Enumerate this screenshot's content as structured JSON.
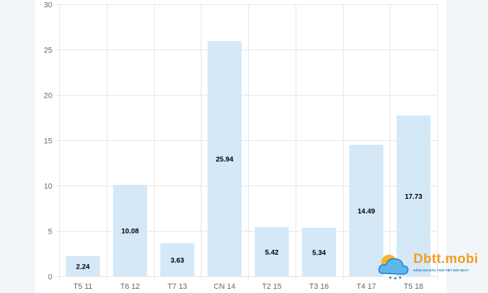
{
  "chart_data": {
    "type": "bar",
    "categories": [
      "T5 11",
      "T6 12",
      "T7 13",
      "CN 14",
      "T2 15",
      "T3 16",
      "T4 17",
      "T5 18"
    ],
    "values": [
      2.24,
      10.08,
      3.63,
      25.94,
      5.42,
      5.34,
      14.49,
      17.73
    ],
    "data_labels": [
      "2.24",
      "10.08",
      "3.63",
      "25.94",
      "5.42",
      "5.34",
      "14.49",
      "17.73"
    ],
    "title": "",
    "xlabel": "",
    "ylabel": "",
    "ylim": [
      0,
      30
    ],
    "yticks": [
      "0",
      "5",
      "10",
      "15",
      "20",
      "25",
      "30"
    ],
    "grid": true,
    "bar_color": "#d4e8f8",
    "legend": "none"
  },
  "watermark": {
    "brand": "Dbtt.mobi",
    "tagline": "KÊNH DỰ BÁO THỜI TIẾT MỖI NGÀY"
  }
}
